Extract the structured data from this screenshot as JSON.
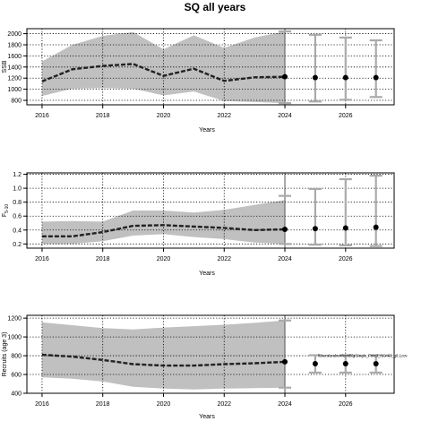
{
  "title": "SQ all years",
  "chart_data": [
    {
      "type": "line",
      "ylabel": "SSB",
      "xlabel": "Years",
      "xlim": [
        2015.5,
        2027.6
      ],
      "ylim": [
        720,
        2090
      ],
      "xticks": [
        2016,
        2018,
        2020,
        2022,
        2024,
        2026
      ],
      "yticks": [
        800,
        1000,
        1200,
        1400,
        1600,
        1800,
        2000
      ],
      "grid": "dotted",
      "historical": {
        "x": [
          2016,
          2017,
          2018,
          2019,
          2020,
          2021,
          2022,
          2023,
          2024
        ],
        "median": [
          1140,
          1360,
          1420,
          1455,
          1240,
          1370,
          1150,
          1215,
          1225
        ],
        "upper": [
          1500,
          1800,
          1960,
          2030,
          1720,
          1970,
          1745,
          1930,
          2040
        ],
        "lower": [
          880,
          1010,
          1020,
          1010,
          890,
          960,
          790,
          770,
          750
        ]
      },
      "projection": {
        "x": [
          2024,
          2025,
          2026,
          2027
        ],
        "median": [
          1225,
          1210,
          1210,
          1210
        ],
        "upper": [
          2040,
          1980,
          1930,
          1880
        ],
        "lower": [
          750,
          780,
          810,
          860
        ]
      },
      "caption": ""
    },
    {
      "type": "line",
      "ylabel": "F",
      "ylabel_sub": "5-10",
      "xlabel": "Years",
      "xlim": [
        2015.5,
        2027.6
      ],
      "ylim": [
        0.14,
        1.22
      ],
      "xticks": [
        2016,
        2018,
        2020,
        2022,
        2024,
        2026
      ],
      "yticks": [
        0.2,
        0.4,
        0.6,
        0.8,
        1.0,
        1.2
      ],
      "ytick_labels": [
        "0.2",
        "0.4",
        "0.6",
        "0.8",
        "1.0",
        "1.2"
      ],
      "grid": "dotted",
      "historical": {
        "x": [
          2016,
          2017,
          2018,
          2019,
          2020,
          2021,
          2022,
          2023,
          2024
        ],
        "median": [
          0.31,
          0.31,
          0.37,
          0.46,
          0.47,
          0.45,
          0.43,
          0.4,
          0.41
        ],
        "upper": [
          0.52,
          0.53,
          0.52,
          0.68,
          0.68,
          0.65,
          0.69,
          0.76,
          0.83
        ],
        "lower": [
          0.2,
          0.2,
          0.24,
          0.32,
          0.34,
          0.3,
          0.27,
          0.22,
          0.2
        ]
      },
      "projection": {
        "x": [
          2024,
          2025,
          2026,
          2027
        ],
        "median": [
          0.41,
          0.42,
          0.43,
          0.44
        ],
        "upper": [
          0.89,
          0.99,
          1.13,
          1.18
        ],
        "lower": [
          0.2,
          0.19,
          0.18,
          0.17
        ]
      },
      "caption": ""
    },
    {
      "type": "line",
      "ylabel": "Recruits (age 3)",
      "xlabel": "Years",
      "xlim": [
        2015.5,
        2027.6
      ],
      "ylim": [
        400,
        1230
      ],
      "xticks": [
        2016,
        2018,
        2020,
        2022,
        2024,
        2026
      ],
      "yticks": [
        400,
        600,
        800,
        1000,
        1200
      ],
      "grid": "dotted",
      "historical": {
        "x": [
          2016,
          2017,
          2018,
          2019,
          2020,
          2021,
          2022,
          2023,
          2024
        ],
        "median": [
          810,
          790,
          755,
          710,
          695,
          695,
          710,
          720,
          735
        ],
        "upper": [
          1155,
          1125,
          1095,
          1080,
          1100,
          1115,
          1130,
          1150,
          1175
        ],
        "lower": [
          570,
          555,
          525,
          470,
          450,
          440,
          450,
          455,
          460
        ]
      },
      "projection": {
        "x": [
          2024,
          2025,
          2026,
          2027
        ],
        "median": [
          735,
          715,
          715,
          715
        ],
        "upper": [
          1175,
          805,
          805,
          805
        ],
        "lower": [
          460,
          620,
          620,
          620
        ]
      },
      "caption": "/Users/andrew/emtBlg/Single_Fore3_r19460_g8.1cov"
    }
  ]
}
